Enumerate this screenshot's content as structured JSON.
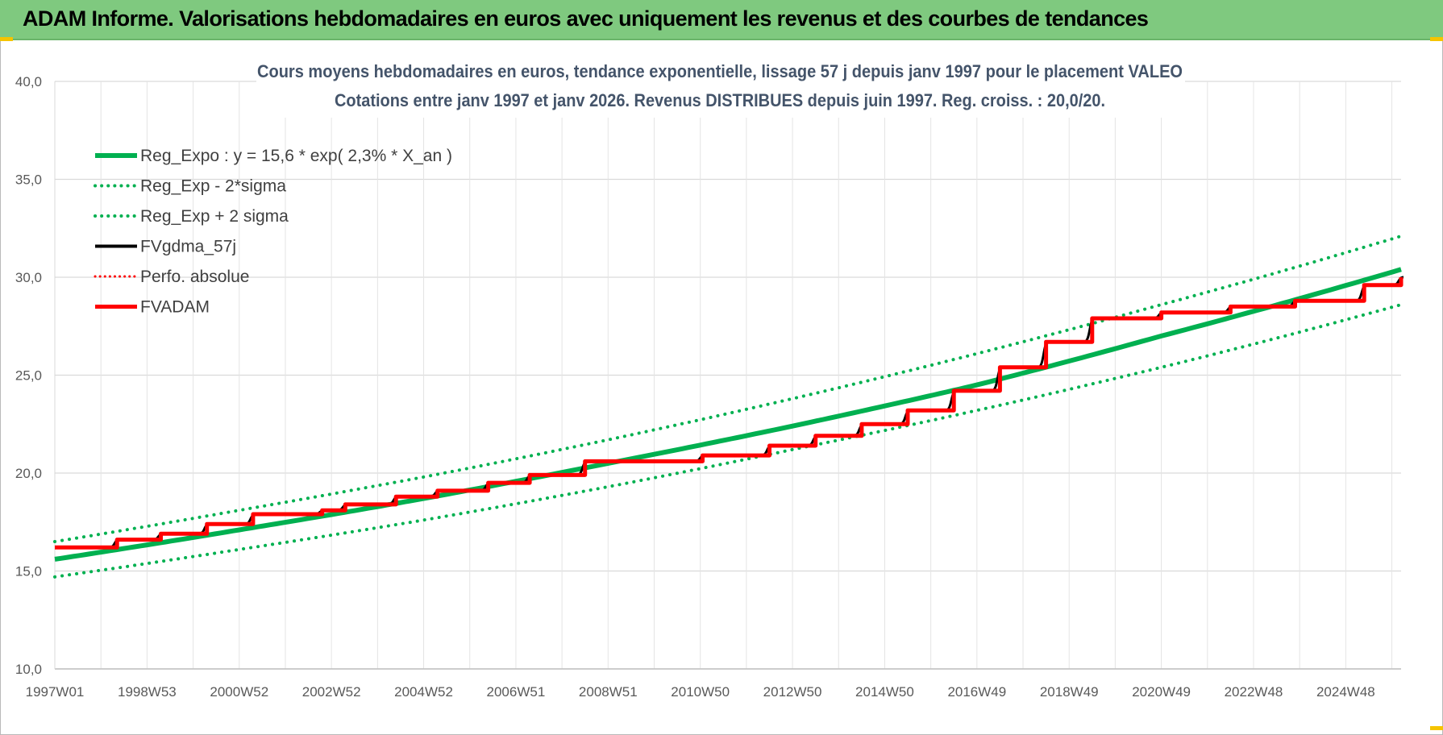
{
  "banner": {
    "title": "ADAM Informe. Valorisations hebdomadaires en euros avec uniquement les revenus et des courbes de tendances",
    "color": "#7fc97f"
  },
  "chart_data": {
    "type": "line",
    "title_line1": "Cours moyens hebdomadaires en euros, tendance exponentielle, lissage 57 j depuis janv 1997 pour le placement VALEO",
    "title_line2": "Cotations entre janv 1997 et janv 2026. Revenus DISTRIBUES depuis juin 1997. Reg. croiss. : 20,0/20.",
    "xlabel": "",
    "ylabel": "",
    "xlim": [
      1997.0,
      2026.2
    ],
    "ylim": [
      10,
      40
    ],
    "y_ticks": [
      "10,0",
      "15,0",
      "20,0",
      "25,0",
      "30,0",
      "35,0",
      "40,0"
    ],
    "y_tick_values": [
      10,
      15,
      20,
      25,
      30,
      35,
      40
    ],
    "x_ticks": [
      "1997W01",
      "1998W53",
      "2000W52",
      "2002W52",
      "2004W52",
      "2006W51",
      "2008W51",
      "2010W50",
      "2012W50",
      "2014W50",
      "2016W49",
      "2018W49",
      "2020W49",
      "2022W48",
      "2024W48"
    ],
    "x_tick_values": [
      1997.0,
      1999.0,
      2001.0,
      2003.0,
      2005.0,
      2007.0,
      2009.0,
      2011.0,
      2013.0,
      2015.0,
      2017.0,
      2019.0,
      2021.0,
      2023.0,
      2025.0
    ],
    "grid": true,
    "legend_position": "top-left",
    "series": [
      {
        "name": "Reg_Expo : y = 15,6 * exp( 2,3% *  X_an )",
        "color": "#00b050",
        "style": "solid-thick",
        "x": [
          1997.0,
          2001.0,
          2005.0,
          2009.0,
          2013.0,
          2017.0,
          2021.0,
          2026.2
        ],
        "y": [
          15.6,
          17.1,
          18.7,
          20.5,
          22.4,
          24.5,
          27.0,
          30.4
        ]
      },
      {
        "name": "Reg_Exp - 2*sigma",
        "color": "#00b050",
        "style": "dotted",
        "x": [
          1997.0,
          2001.0,
          2005.0,
          2009.0,
          2013.0,
          2017.0,
          2021.0,
          2026.2
        ],
        "y": [
          14.7,
          16.1,
          17.6,
          19.3,
          21.2,
          23.2,
          25.4,
          28.6
        ]
      },
      {
        "name": "Reg_Exp + 2 sigma",
        "color": "#00b050",
        "style": "dotted",
        "x": [
          1997.0,
          2001.0,
          2005.0,
          2009.0,
          2013.0,
          2017.0,
          2021.0,
          2026.2
        ],
        "y": [
          16.5,
          18.1,
          19.8,
          21.7,
          23.8,
          26.1,
          28.6,
          32.1
        ]
      },
      {
        "name": "FVgdma_57j",
        "color": "#000000",
        "style": "solid",
        "x": [
          1997.0,
          1998.35,
          1999.3,
          2000.3,
          2001.3,
          2002.8,
          2003.3,
          2004.4,
          2005.3,
          2006.4,
          2007.3,
          2008.5,
          2011.05,
          2012.5,
          2013.5,
          2014.5,
          2015.5,
          2016.5,
          2017.5,
          2018.5,
          2019.5,
          2021.0,
          2022.5,
          2023.9,
          2025.4,
          2026.2
        ],
        "y": [
          16.2,
          16.6,
          16.9,
          17.4,
          17.9,
          18.1,
          18.4,
          18.8,
          19.1,
          19.5,
          19.9,
          20.6,
          20.9,
          21.4,
          21.9,
          22.5,
          23.2,
          24.2,
          25.4,
          26.7,
          27.9,
          28.2,
          28.5,
          28.8,
          29.6,
          30.0
        ]
      },
      {
        "name": "Perfo. absolue",
        "color": "#ff0000",
        "style": "dotted",
        "x": [],
        "y": []
      },
      {
        "name": "FVADAM",
        "color": "#ff0000",
        "style": "step-thick",
        "x": [
          1997.0,
          1998.35,
          1999.3,
          2000.3,
          2001.3,
          2002.8,
          2003.3,
          2004.4,
          2005.3,
          2006.4,
          2007.3,
          2008.5,
          2011.05,
          2012.5,
          2013.5,
          2014.5,
          2015.5,
          2016.5,
          2017.5,
          2018.5,
          2019.5,
          2021.0,
          2022.5,
          2023.9,
          2025.4,
          2026.2
        ],
        "y": [
          16.2,
          16.6,
          16.9,
          17.4,
          17.9,
          18.1,
          18.4,
          18.8,
          19.1,
          19.5,
          19.9,
          20.6,
          20.9,
          21.4,
          21.9,
          22.5,
          23.2,
          24.2,
          25.4,
          26.7,
          27.9,
          28.2,
          28.5,
          28.8,
          29.6,
          30.0
        ]
      }
    ]
  }
}
